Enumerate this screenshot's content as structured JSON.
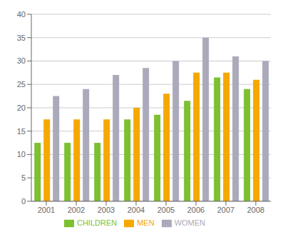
{
  "chart_data": {
    "type": "bar",
    "categories": [
      "2001",
      "2002",
      "2003",
      "2004",
      "2005",
      "2006",
      "2007",
      "2008"
    ],
    "series": [
      {
        "name": "CHILDREN",
        "color": "#7DC030",
        "values": [
          12.5,
          12.5,
          12.5,
          17.5,
          18.5,
          21.5,
          26.5,
          24.0
        ]
      },
      {
        "name": "MEN",
        "color": "#F5A800",
        "values": [
          17.5,
          17.5,
          17.5,
          20.0,
          23.0,
          27.5,
          27.5,
          26.0
        ]
      },
      {
        "name": "WOMEN",
        "color": "#AAAABB",
        "values": [
          22.5,
          24.0,
          27.0,
          28.5,
          30.0,
          35.0,
          31.0,
          30.0
        ]
      }
    ],
    "ylim": [
      0,
      40
    ],
    "yticks": [
      0,
      5,
      10,
      15,
      20,
      25,
      30,
      35,
      40
    ],
    "grid": true,
    "legend": "bottom"
  }
}
